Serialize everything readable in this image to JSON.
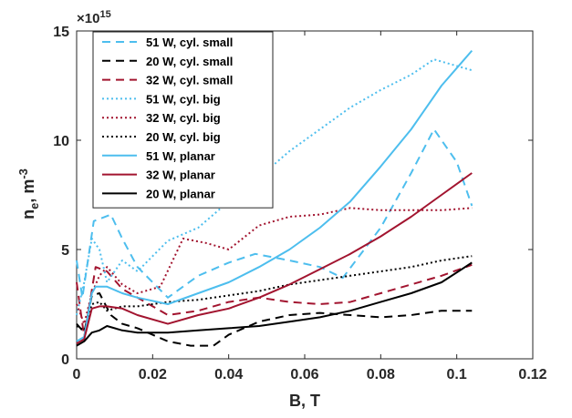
{
  "chart_data": {
    "type": "line",
    "title": "",
    "xlabel": "B, T",
    "ylabel_parts": {
      "base": "n",
      "sub": "e",
      "mid": ", m",
      "sup": "-3"
    },
    "y_exponent_prefix": "×10",
    "y_exponent_power": "15",
    "xlim": [
      0,
      0.12
    ],
    "ylim": [
      0,
      15
    ],
    "xticks": [
      0,
      0.02,
      0.04,
      0.06,
      0.08,
      0.1,
      0.12
    ],
    "xtick_labels": [
      "0",
      "0.02",
      "0.04",
      "0.06",
      "0.08",
      "0.1",
      "0.12"
    ],
    "yticks": [
      0,
      5,
      10,
      15
    ],
    "ytick_labels": [
      "0",
      "5",
      "10",
      "15"
    ],
    "grid": false,
    "legend_position": "top-left",
    "series": [
      {
        "name": "51 W, cyl. small",
        "color": "#4dbeee",
        "dash": "dashed",
        "x": [
          0,
          0.0015,
          0.0045,
          0.006,
          0.009,
          0.012,
          0.016,
          0.024,
          0.032,
          0.04,
          0.047,
          0.056,
          0.064,
          0.07,
          0.08,
          0.088,
          0.094,
          0.1,
          0.104
        ],
        "y": [
          4.5,
          2.8,
          6.3,
          6.4,
          6.6,
          5.5,
          4.2,
          2.8,
          3.8,
          4.4,
          4.8,
          4.5,
          4.2,
          3.7,
          6.0,
          8.5,
          10.5,
          9.0,
          7.0
        ]
      },
      {
        "name": "20 W, cyl. small",
        "color": "#000000",
        "dash": "dashed",
        "x": [
          0,
          0.002,
          0.004,
          0.006,
          0.009,
          0.012,
          0.016,
          0.024,
          0.03,
          0.036,
          0.04,
          0.048,
          0.056,
          0.064,
          0.072,
          0.08,
          0.088,
          0.096,
          0.104
        ],
        "y": [
          1.6,
          1.2,
          2.9,
          3.0,
          2.0,
          1.6,
          1.4,
          0.8,
          0.6,
          0.6,
          1.1,
          1.7,
          2.0,
          2.1,
          2.0,
          1.9,
          2.0,
          2.2,
          2.2
        ]
      },
      {
        "name": "32 W, cyl. small",
        "color": "#a2142f",
        "dash": "dashed",
        "x": [
          0,
          0.002,
          0.005,
          0.008,
          0.012,
          0.016,
          0.024,
          0.032,
          0.04,
          0.048,
          0.056,
          0.064,
          0.072,
          0.08,
          0.088,
          0.096,
          0.104
        ],
        "y": [
          3.5,
          1.0,
          4.2,
          4.0,
          3.2,
          2.8,
          2.0,
          2.2,
          2.6,
          2.8,
          2.6,
          2.5,
          2.6,
          3.0,
          3.4,
          3.8,
          4.3
        ]
      },
      {
        "name": "51 W, cyl. big",
        "color": "#4dbeee",
        "dash": "dotted",
        "x": [
          0,
          0.002,
          0.004,
          0.006,
          0.008,
          0.012,
          0.016,
          0.024,
          0.032,
          0.04,
          0.048,
          0.056,
          0.064,
          0.072,
          0.08,
          0.088,
          0.094,
          0.1,
          0.104
        ],
        "y": [
          2.0,
          3.5,
          5.5,
          5.0,
          3.5,
          4.5,
          4.0,
          5.4,
          6.0,
          7.2,
          8.3,
          9.5,
          10.5,
          11.5,
          12.3,
          13.0,
          13.7,
          13.4,
          13.2
        ]
      },
      {
        "name": "32 W, cyl. big",
        "color": "#a2142f",
        "dash": "dotted",
        "x": [
          0,
          0.002,
          0.004,
          0.006,
          0.008,
          0.012,
          0.016,
          0.022,
          0.028,
          0.034,
          0.04,
          0.048,
          0.056,
          0.064,
          0.072,
          0.08,
          0.088,
          0.096,
          0.104
        ],
        "y": [
          2.5,
          1.6,
          3.0,
          3.8,
          4.2,
          3.4,
          3.0,
          3.3,
          5.5,
          5.3,
          5.0,
          6.1,
          6.5,
          6.6,
          6.9,
          6.8,
          6.8,
          6.8,
          6.9
        ]
      },
      {
        "name": "20 W, cyl. big",
        "color": "#000000",
        "dash": "dotted",
        "x": [
          0,
          0.002,
          0.004,
          0.006,
          0.008,
          0.012,
          0.016,
          0.024,
          0.032,
          0.04,
          0.048,
          0.056,
          0.064,
          0.072,
          0.08,
          0.088,
          0.096,
          0.104
        ],
        "y": [
          1.5,
          1.3,
          2.5,
          2.6,
          2.2,
          2.4,
          2.4,
          2.6,
          2.7,
          2.9,
          3.1,
          3.4,
          3.6,
          3.8,
          4.0,
          4.2,
          4.5,
          4.7
        ]
      },
      {
        "name": "51 W, planar",
        "color": "#4dbeee",
        "dash": "solid",
        "x": [
          0,
          0.002,
          0.004,
          0.005,
          0.008,
          0.012,
          0.016,
          0.024,
          0.032,
          0.04,
          0.048,
          0.056,
          0.064,
          0.072,
          0.08,
          0.088,
          0.096,
          0.104
        ],
        "y": [
          0.8,
          1.0,
          3.0,
          3.3,
          3.3,
          3.0,
          2.8,
          2.5,
          3.0,
          3.5,
          4.2,
          5.0,
          6.0,
          7.2,
          8.8,
          10.5,
          12.5,
          14.1
        ]
      },
      {
        "name": "32 W, planar",
        "color": "#a2142f",
        "dash": "solid",
        "x": [
          0,
          0.002,
          0.004,
          0.006,
          0.008,
          0.012,
          0.016,
          0.024,
          0.032,
          0.04,
          0.048,
          0.056,
          0.064,
          0.072,
          0.08,
          0.088,
          0.096,
          0.104
        ],
        "y": [
          0.7,
          0.9,
          2.3,
          2.4,
          2.4,
          2.3,
          2.0,
          1.6,
          2.0,
          2.3,
          2.8,
          3.4,
          4.1,
          4.8,
          5.6,
          6.5,
          7.5,
          8.5
        ]
      },
      {
        "name": "20 W, planar",
        "color": "#000000",
        "dash": "solid",
        "x": [
          0,
          0.002,
          0.004,
          0.006,
          0.008,
          0.012,
          0.016,
          0.024,
          0.032,
          0.04,
          0.048,
          0.056,
          0.064,
          0.072,
          0.08,
          0.088,
          0.096,
          0.104
        ],
        "y": [
          0.6,
          0.8,
          1.2,
          1.3,
          1.5,
          1.3,
          1.2,
          1.2,
          1.3,
          1.4,
          1.5,
          1.7,
          1.9,
          2.2,
          2.6,
          3.0,
          3.5,
          4.4
        ]
      }
    ]
  }
}
